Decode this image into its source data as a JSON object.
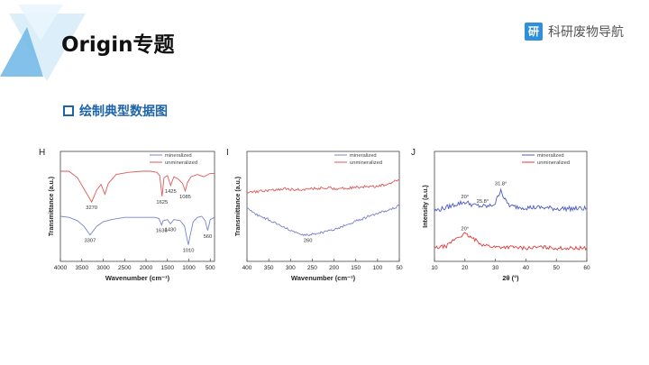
{
  "header": {
    "title": "Origin专题",
    "brand_logo": "研",
    "brand_name": "科研废物导航",
    "accent_color": "#2f8fd8"
  },
  "section": {
    "heading": "绘制典型数据图",
    "icon": "square-outline-icon",
    "color": "#1e64a8"
  },
  "chart_data": [
    {
      "panel": "H",
      "type": "line",
      "xlabel": "Wavenumber (cm⁻¹)",
      "ylabel": "Transmittance (a.u.)",
      "xlim": [
        4000,
        400
      ],
      "xticks": [
        4000,
        3500,
        3000,
        2500,
        2000,
        1500,
        1000,
        500
      ],
      "legend": "top-right",
      "series": [
        {
          "name": "mineralized",
          "color": "#7b83c8",
          "x": [
            4000,
            3800,
            3600,
            3450,
            3307,
            3150,
            3000,
            2800,
            2500,
            2200,
            2000,
            1800,
            1700,
            1636,
            1600,
            1500,
            1430,
            1350,
            1200,
            1100,
            1040,
            1010,
            980,
            900,
            800,
            700,
            620,
            560,
            500,
            400
          ],
          "y": [
            4.1,
            4.0,
            3.7,
            3.2,
            2.4,
            3.2,
            3.6,
            3.8,
            4.0,
            4.0,
            4.0,
            4.0,
            3.9,
            3.3,
            3.7,
            3.8,
            3.4,
            3.8,
            3.7,
            3.2,
            2.0,
            1.5,
            2.2,
            3.6,
            4.0,
            4.1,
            3.7,
            2.8,
            3.8,
            4.0
          ]
        },
        {
          "name": "unmineralized",
          "color": "#e05a5a",
          "x": [
            4000,
            3800,
            3600,
            3450,
            3270,
            3150,
            3050,
            2960,
            2880,
            2700,
            2400,
            2100,
            1900,
            1750,
            1680,
            1625,
            1580,
            1500,
            1425,
            1350,
            1250,
            1150,
            1085,
            1030,
            950,
            800,
            650,
            500,
            400
          ],
          "y": [
            8.2,
            8.2,
            7.6,
            6.6,
            5.4,
            6.5,
            7.0,
            6.1,
            7.1,
            7.9,
            8.1,
            8.2,
            8.2,
            8.1,
            7.8,
            5.9,
            7.6,
            7.8,
            6.9,
            7.7,
            7.5,
            7.1,
            6.4,
            7.2,
            7.7,
            7.9,
            7.7,
            8.0,
            8.0
          ]
        }
      ],
      "annotations": [
        {
          "label": "3270",
          "x": 3270,
          "y": 5.4,
          "series": "unmineralized"
        },
        {
          "label": "1625",
          "x": 1625,
          "y": 5.9,
          "series": "unmineralized"
        },
        {
          "label": "1425",
          "x": 1425,
          "y": 6.9,
          "series": "unmineralized"
        },
        {
          "label": "1085",
          "x": 1085,
          "y": 6.4,
          "series": "unmineralized"
        },
        {
          "label": "3307",
          "x": 3307,
          "y": 2.4,
          "series": "mineralized"
        },
        {
          "label": "1636",
          "x": 1636,
          "y": 3.3,
          "series": "mineralized"
        },
        {
          "label": "1430",
          "x": 1430,
          "y": 3.4,
          "series": "mineralized"
        },
        {
          "label": "1010",
          "x": 1010,
          "y": 1.5,
          "series": "mineralized"
        },
        {
          "label": "560",
          "x": 560,
          "y": 2.8,
          "series": "mineralized"
        }
      ]
    },
    {
      "panel": "I",
      "type": "line",
      "xlabel": "Wavenumber (cm⁻¹)",
      "ylabel": "Transmittance (a.u.)",
      "xlim": [
        400,
        50
      ],
      "xticks": [
        400,
        350,
        300,
        250,
        200,
        150,
        100,
        50
      ],
      "legend": "top-right",
      "series": [
        {
          "name": "mineralized",
          "color": "#7b83c8",
          "x": [
            400,
            380,
            350,
            320,
            300,
            280,
            260,
            240,
            220,
            200,
            180,
            160,
            140,
            120,
            100,
            80,
            60,
            50
          ],
          "y": [
            4.8,
            4.3,
            3.8,
            3.2,
            2.8,
            2.5,
            2.4,
            2.5,
            2.7,
            2.9,
            3.2,
            3.5,
            3.8,
            4.1,
            4.4,
            4.6,
            4.9,
            5.1
          ],
          "jitter": 0.12
        },
        {
          "name": "unmineralized",
          "color": "#e05a5a",
          "x": [
            400,
            370,
            340,
            310,
            280,
            250,
            220,
            190,
            160,
            130,
            100,
            80,
            60,
            50
          ],
          "y": [
            6.2,
            6.4,
            6.5,
            6.6,
            6.5,
            6.6,
            6.7,
            6.6,
            6.7,
            6.8,
            6.8,
            7.0,
            7.3,
            7.4
          ],
          "jitter": 0.12
        }
      ],
      "annotations": [
        {
          "label": "260",
          "x": 260,
          "y": 2.4,
          "series": "mineralized"
        }
      ]
    },
    {
      "panel": "J",
      "type": "line",
      "xlabel": "2θ (°)",
      "ylabel": "Intensity (a.u.)",
      "xlim": [
        10,
        60
      ],
      "xticks": [
        10,
        20,
        30,
        40,
        50,
        60
      ],
      "legend": "top-right",
      "series": [
        {
          "name": "mineralized",
          "color": "#4b5bc4",
          "x": [
            10,
            14,
            17,
            20,
            23,
            25.8,
            28,
            30,
            31.8,
            33,
            35,
            40,
            45,
            50,
            55,
            60
          ],
          "y": [
            4.6,
            4.9,
            5.2,
            5.4,
            5.1,
            5.0,
            5.0,
            5.3,
            6.6,
            5.6,
            5.0,
            4.9,
            4.9,
            4.8,
            4.8,
            4.8
          ],
          "jitter": 0.22
        },
        {
          "name": "unmineralized",
          "color": "#e03a3a",
          "x": [
            10,
            14,
            17,
            20,
            23,
            26,
            30,
            35,
            40,
            45,
            50,
            55,
            60
          ],
          "y": [
            1.2,
            1.4,
            2.1,
            2.5,
            2.0,
            1.5,
            1.3,
            1.3,
            1.2,
            1.3,
            1.2,
            1.2,
            1.2
          ],
          "jitter": 0.16
        }
      ],
      "annotations": [
        {
          "label": "20°",
          "x": 20,
          "y": 5.4,
          "series": "mineralized"
        },
        {
          "label": "25.8°",
          "x": 25.8,
          "y": 5.0,
          "series": "mineralized"
        },
        {
          "label": "31.8°",
          "x": 31.8,
          "y": 6.6,
          "series": "mineralized"
        },
        {
          "label": "20°",
          "x": 20,
          "y": 2.5,
          "series": "unmineralized"
        }
      ]
    }
  ]
}
